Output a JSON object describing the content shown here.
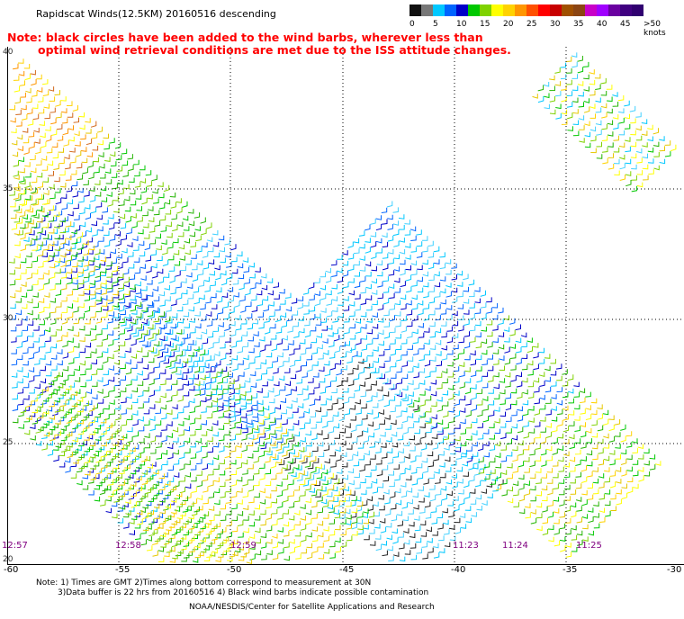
{
  "title": "Rapidscat Winds(12.5KM) 20160516 descending",
  "note_line1": "Note: black circles have been added to the wind barbs, wherever less than",
  "note_line2": "optimal wind retrieval conditions are met due to the ISS attitude changes.",
  "legend": {
    "colors": [
      "#111111",
      "#777777",
      "#00c8ff",
      "#0064ff",
      "#0000c8",
      "#00c800",
      "#7fd200",
      "#ffff00",
      "#ffd200",
      "#ff9600",
      "#ff5000",
      "#ff0000",
      "#c80000",
      "#a05000",
      "#8b4513",
      "#c800c8",
      "#a000ff",
      "#6a00a0",
      "#400080",
      "#300070"
    ],
    "labels": [
      "0",
      "5",
      "10",
      "15",
      "20",
      "25",
      "30",
      "35",
      "40",
      "45",
      ">50 knots"
    ]
  },
  "axes": {
    "lat_labels": [
      "40",
      "35",
      "30",
      "25",
      "20"
    ],
    "lon_labels": [
      "-60",
      "-55",
      "-50",
      "-45",
      "-40",
      "-35",
      "-30"
    ]
  },
  "pass_times": [
    "12:57",
    "12:58",
    "12:59",
    "11:23",
    "11:24",
    "11:25"
  ],
  "footer": {
    "line1": "Note: 1) Times are GMT 2)Times along bottom correspond to measurement at 30N",
    "line2": "3)Data buffer is 22 hrs from 20160516 4) Black wind barbs indicate possible contamination",
    "line3": "NOAA/NESDIS/Center for Satellite Applications and Research"
  }
}
